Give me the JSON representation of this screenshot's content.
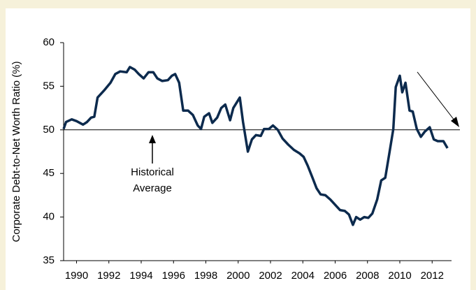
{
  "chart_data": {
    "type": "line",
    "y_label": "Corporate Debt-to-Net Worth Ratio (%)",
    "annotation": [
      "Historical",
      "Average"
    ],
    "average": 50,
    "xlim": [
      1989.2,
      2013.2
    ],
    "xticks": [
      1990,
      1992,
      1994,
      1996,
      1998,
      2000,
      2002,
      2004,
      2006,
      2008,
      2010,
      2012
    ],
    "ylim": [
      35,
      60
    ],
    "yticks": [
      35,
      40,
      45,
      50,
      55,
      60
    ],
    "series": [
      {
        "color": "#0c2a4d",
        "x": [
          1989.2,
          1989.35,
          1989.7,
          1990.0,
          1990.4,
          1990.65,
          1990.9,
          1991.1,
          1991.3,
          1991.7,
          1992.1,
          1992.4,
          1992.7,
          1993.1,
          1993.3,
          1993.6,
          1993.85,
          1994.15,
          1994.45,
          1994.75,
          1995.0,
          1995.3,
          1995.65,
          1995.9,
          1996.1,
          1996.35,
          1996.6,
          1996.9,
          1997.2,
          1997.5,
          1997.7,
          1997.9,
          1998.2,
          1998.4,
          1998.7,
          1998.95,
          1999.2,
          1999.5,
          1999.7,
          2000.1,
          2000.3,
          2000.6,
          2000.85,
          2001.1,
          2001.4,
          2001.6,
          2001.9,
          2002.15,
          2002.45,
          2002.75,
          2003.1,
          2003.45,
          2003.8,
          2004.05,
          2004.3,
          2004.6,
          2004.85,
          2005.1,
          2005.4,
          2005.7,
          2006.0,
          2006.3,
          2006.6,
          2006.85,
          2007.1,
          2007.3,
          2007.55,
          2007.8,
          2008.05,
          2008.3,
          2008.6,
          2008.85,
          2009.1,
          2009.35,
          2009.6,
          2009.75,
          2010.0,
          2010.15,
          2010.35,
          2010.6,
          2010.8,
          2011.05,
          2011.3,
          2011.55,
          2011.85,
          2012.1,
          2012.35,
          2012.7,
          2012.95
        ],
        "values": [
          50.1,
          50.9,
          51.2,
          51.0,
          50.6,
          50.9,
          51.4,
          51.5,
          53.7,
          54.5,
          55.4,
          56.4,
          56.7,
          56.6,
          57.2,
          56.9,
          56.4,
          55.9,
          56.6,
          56.6,
          55.9,
          55.6,
          55.7,
          56.2,
          56.4,
          55.4,
          52.2,
          52.2,
          51.7,
          50.5,
          50.1,
          51.5,
          51.9,
          50.8,
          51.4,
          52.5,
          52.9,
          51.1,
          52.5,
          53.7,
          50.9,
          47.5,
          48.9,
          49.4,
          49.3,
          50.1,
          50.1,
          50.5,
          50.0,
          49.0,
          48.3,
          47.7,
          47.3,
          46.9,
          45.9,
          44.5,
          43.3,
          42.6,
          42.5,
          42.0,
          41.4,
          40.8,
          40.7,
          40.3,
          39.1,
          40.0,
          39.7,
          40.0,
          39.9,
          40.4,
          42.0,
          44.2,
          44.5,
          47.3,
          50.1,
          54.9,
          56.2,
          54.3,
          55.4,
          52.2,
          52.1,
          50.1,
          49.2,
          49.8,
          50.3,
          48.9,
          48.7,
          48.7,
          47.9
        ]
      }
    ]
  }
}
